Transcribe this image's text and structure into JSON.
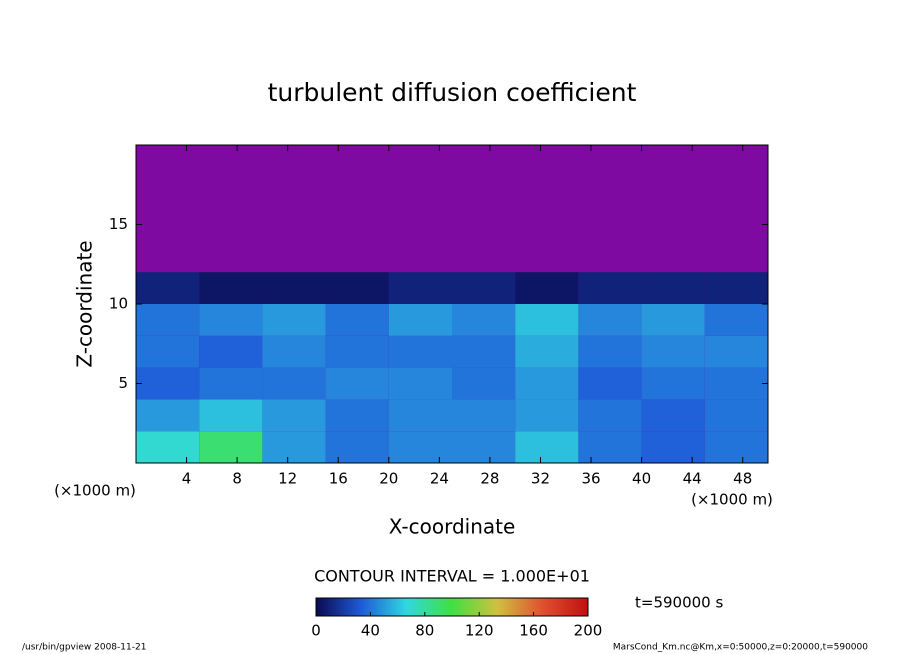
{
  "chart_data": {
    "type": "heatmap",
    "title": "turbulent diffusion coefficient",
    "xlabel": "X-coordinate",
    "ylabel": "Z-coordinate",
    "xunit_left": "(×1000 m)",
    "xunit_right": "(×1000 m)",
    "contour_interval": "CONTOUR INTERVAL = 1.000E+01",
    "time_label": "t=590000 s",
    "footer_left": "/usr/bin/gpview  2008-11-21",
    "footer_right": "MarsCond_Km.nc@Km,x=0:50000,z=0:20000,t=590000",
    "xlim": [
      0,
      50
    ],
    "ylim": [
      0,
      20
    ],
    "xticks": [
      4,
      8,
      12,
      16,
      20,
      24,
      28,
      32,
      36,
      40,
      44,
      48
    ],
    "yticks": [
      5,
      10,
      15
    ],
    "background_color": "#7e0aa2",
    "x": [
      2.5,
      7.5,
      12.5,
      17.5,
      22.5,
      27.5,
      32.5,
      37.5,
      42.5,
      47.5
    ],
    "z": [
      1,
      3,
      5,
      7,
      9,
      11
    ],
    "cell_width": 5,
    "cell_height": 2,
    "values": [
      [
        70,
        90,
        50,
        40,
        45,
        45,
        60,
        40,
        35,
        40
      ],
      [
        50,
        60,
        50,
        40,
        45,
        45,
        50,
        40,
        35,
        40
      ],
      [
        35,
        40,
        40,
        45,
        45,
        40,
        50,
        35,
        40,
        40
      ],
      [
        40,
        35,
        45,
        40,
        40,
        40,
        55,
        40,
        45,
        45
      ],
      [
        40,
        45,
        50,
        40,
        50,
        45,
        60,
        45,
        50,
        40
      ],
      [
        10,
        5,
        5,
        5,
        10,
        10,
        5,
        10,
        10,
        10
      ]
    ],
    "colorbar": {
      "lim": [
        0,
        200
      ],
      "ticks": [
        0,
        40,
        80,
        120,
        160,
        200
      ],
      "colors": [
        "#0a0a50",
        "#1f5ad8",
        "#30d8e0",
        "#40e040",
        "#d0c040",
        "#e05030",
        "#c01010"
      ]
    }
  }
}
